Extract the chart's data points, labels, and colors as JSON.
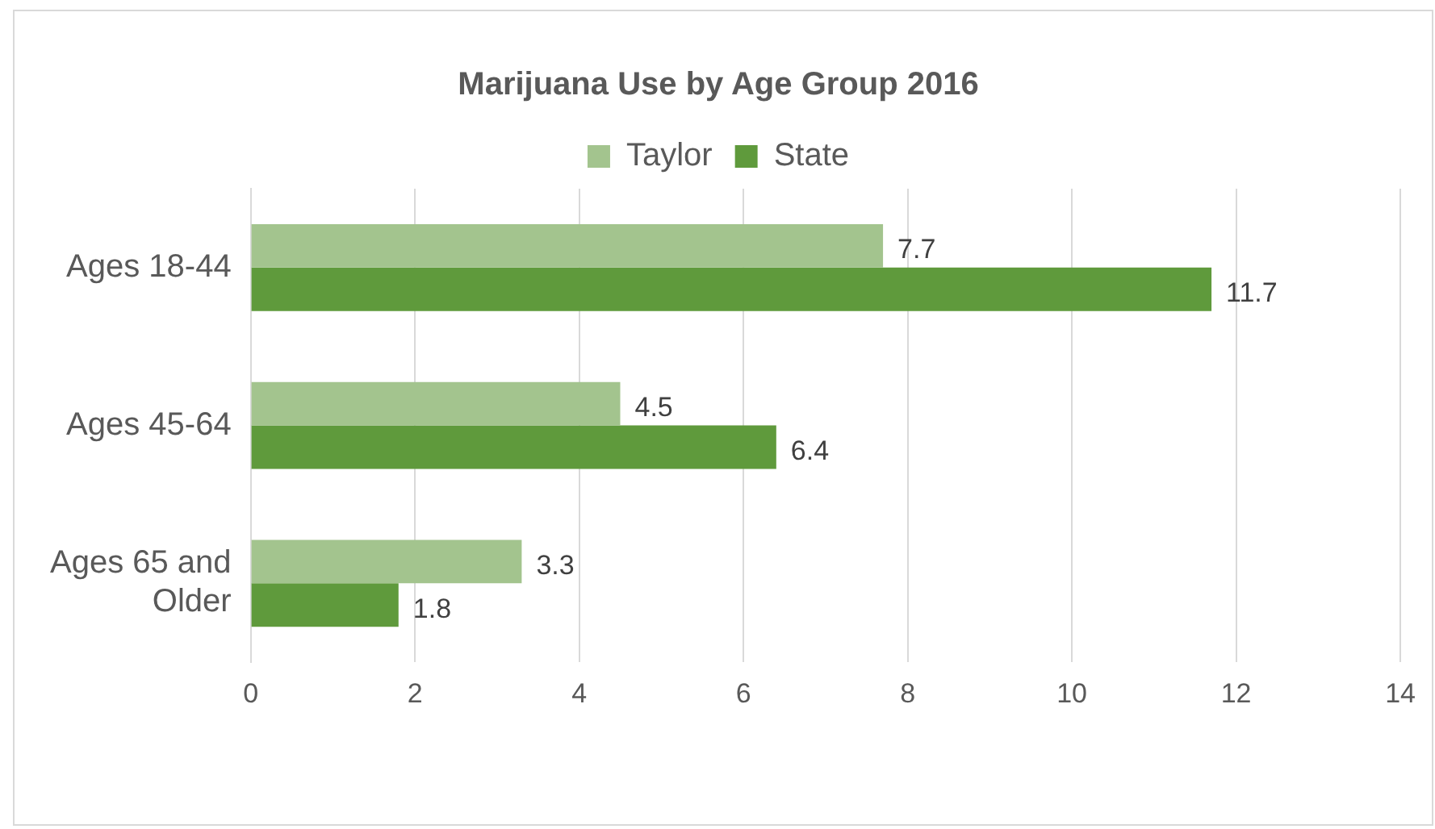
{
  "chart_data": {
    "type": "bar",
    "orientation": "horizontal",
    "title": "Marijuana Use by Age Group 2016",
    "categories": [
      "Ages 18-44",
      "Ages 45-64",
      "Ages 65 and Older"
    ],
    "series": [
      {
        "name": "Taylor",
        "color": "#a3c48e",
        "values": [
          7.7,
          4.5,
          3.3
        ]
      },
      {
        "name": "State",
        "color": "#5f9a3c",
        "values": [
          11.7,
          6.4,
          1.8
        ]
      }
    ],
    "xlim": [
      0,
      14
    ],
    "xticks": [
      0,
      2,
      4,
      6,
      8,
      10,
      12,
      14
    ],
    "grid": "x",
    "legend": "top",
    "data_labels": true
  }
}
